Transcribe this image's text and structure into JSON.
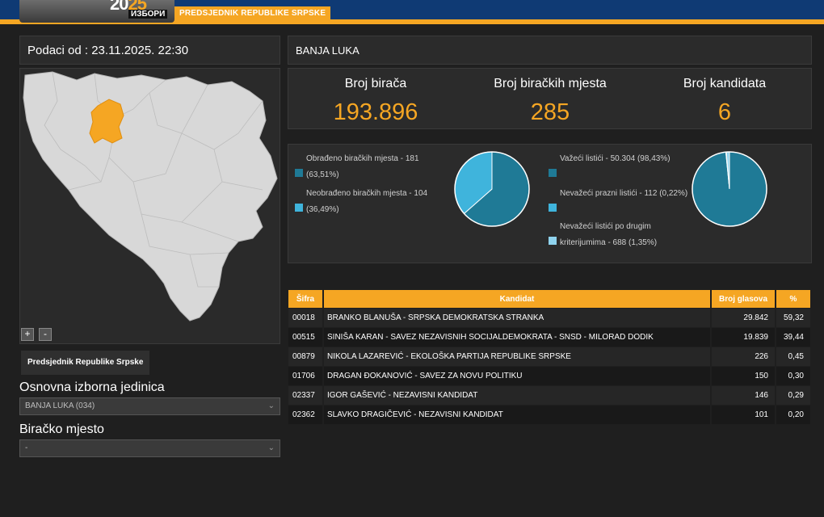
{
  "header": {
    "year_prefix": "20",
    "year_suffix": "25",
    "logo_text": "ИЗБОРИ",
    "banner": "PREDSJEDNIK REPUBLIKE SRPSKE",
    "colors": {
      "bar": "#0f3a74",
      "accent": "#f5a623"
    }
  },
  "left": {
    "date_text": "Podaci od : 23.11.2025. 22:30",
    "zoom_in": "+",
    "zoom_out": "-",
    "tab_label": "Predsjednik Republike Srpske",
    "unit_label": "Osnovna izborna jedinica",
    "unit_value": "BANJA LUKA (034)",
    "station_label": "Biračko mjesto",
    "station_value": "-",
    "map": {
      "selected_region": "Banja Luka",
      "selected_color": "#f5a623",
      "base_color": "#d8d8d8"
    }
  },
  "main": {
    "place": "BANJA LUKA",
    "stats": [
      {
        "label": "Broj birača",
        "value": "193.896"
      },
      {
        "label": "Broj biračkih mjesta",
        "value": "285"
      },
      {
        "label": "Broj kandidata",
        "value": "6"
      }
    ],
    "stations_legend": [
      {
        "text": "Obrađeno biračkih mjesta - 181 (63,51%)",
        "color": "#1f7a96",
        "share": 63.51
      },
      {
        "text": "Neobrađeno biračkih mjesta - 104 (36,49%)",
        "color": "#3fb4dc",
        "share": 36.49
      }
    ],
    "ballots_legend": [
      {
        "text": "Važeći listići - 50.304 (98,43%)",
        "color": "#1f7a96",
        "share": 98.43
      },
      {
        "text": "Nevažeći prazni listići - 112 (0,22%)",
        "color": "#3fb4dc",
        "share": 0.22
      },
      {
        "text": "Nevažeći listići po drugim kriterijumima - 688 (1,35%)",
        "color": "#8fd3ee",
        "share": 1.35
      }
    ],
    "table": {
      "headers": [
        "Šifra",
        "Kandidat",
        "Broj glasova",
        "%"
      ],
      "rows": [
        [
          "00018",
          "BRANKO BLANUŠA - SRPSKA DEMOKRATSKA STRANKA",
          "29.842",
          "59,32"
        ],
        [
          "00515",
          "SINIŠA KARAN - SAVEZ NEZAVISNIH SOCIJALDEMOKRATA - SNSD - MILORAD DODIK",
          "19.839",
          "39,44"
        ],
        [
          "00879",
          "NIKOLA LAZAREVIĆ - EKOLOŠKA PARTIJA REPUBLIKE SRPSKE",
          "226",
          "0,45"
        ],
        [
          "01706",
          "DRAGAN ĐOKANOVIĆ - SAVEZ ZA NOVU POLITIKU",
          "150",
          "0,30"
        ],
        [
          "02337",
          "IGOR GAŠEVIĆ - NEZAVISNI KANDIDAT",
          "146",
          "0,29"
        ],
        [
          "02362",
          "SLAVKO DRAGIČEVIĆ - NEZAVISNI KANDIDAT",
          "101",
          "0,20"
        ]
      ]
    }
  }
}
